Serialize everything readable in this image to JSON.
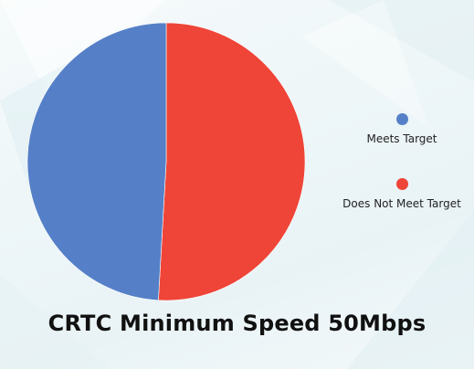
{
  "chart_data": {
    "type": "pie",
    "title": "CRTC Minimum Speed 50Mbps",
    "categories": [
      "Meets Target",
      "Does Not Meet Target"
    ],
    "values": [
      49.1,
      50.9
    ],
    "colors": [
      "#5580c8",
      "#ee4538"
    ],
    "legend_position": "right"
  }
}
